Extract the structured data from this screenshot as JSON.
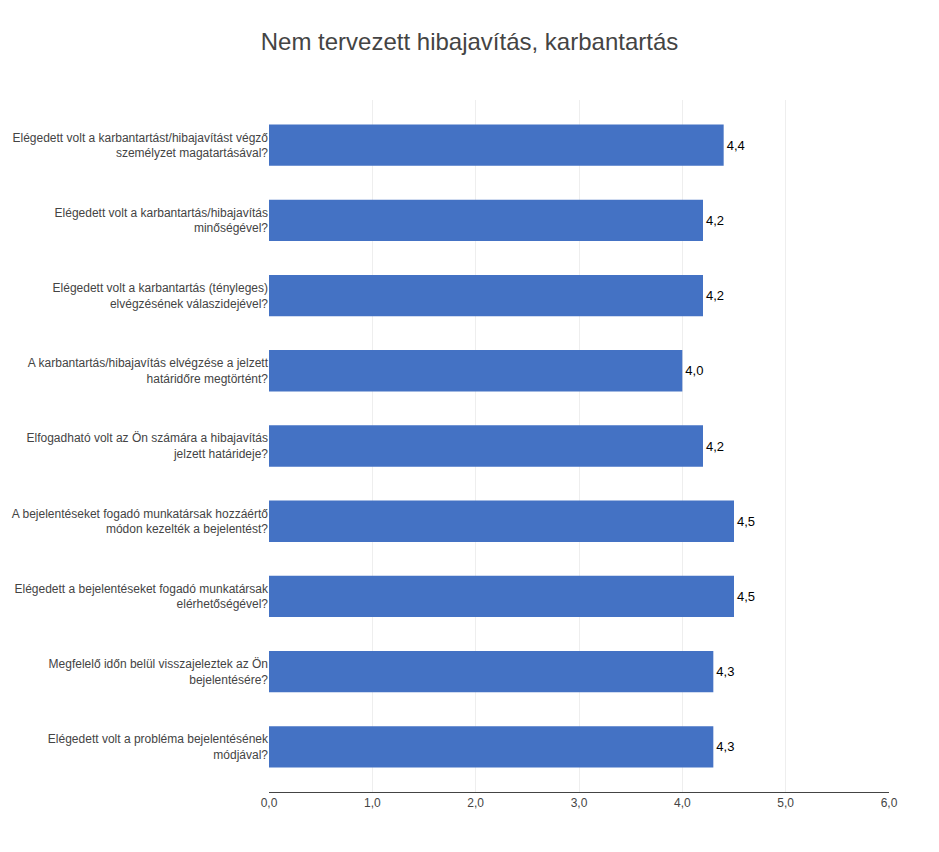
{
  "chart_data": {
    "type": "bar",
    "orientation": "horizontal",
    "title": "Nem tervezett hibajavítás, karbantartás",
    "categories": [
      "Elégedett volt a probléma bejelentésének\nmódjával?",
      "Megfelelő időn belül visszajeleztek az Ön\nbejelentésére?",
      "Elégedett a bejelentéseket fogadó munkatársak\nelérhetőségével?",
      "A bejelentéseket fogadó munkatársak hozzáértő\nmódon kezelték a bejelentést?",
      "Elfogadható volt az Ön számára a hibajavítás\njelzett határideje?",
      "A karbantartás/hibajavítás elvégzése a jelzett\nhatáridőre megtörtént?",
      "Elégedett volt a karbantartás (tényleges)\nelvégzésének válaszidejével?",
      "Elégedett volt a karbantartás/hibajavítás\nminőségével?",
      "Elégedett volt a karbantartást/hibajavítást végző\nszemélyzet magatartásával?"
    ],
    "values": [
      4.3,
      4.3,
      4.5,
      4.5,
      4.2,
      4.0,
      4.2,
      4.2,
      4.4
    ],
    "value_labels": [
      "4,3",
      "4,3",
      "4,5",
      "4,5",
      "4,2",
      "4,0",
      "4,2",
      "4,2",
      "4,4"
    ],
    "data_labels": true,
    "color": "#4472C4",
    "xlim": [
      0,
      6.0
    ],
    "xticks": [
      {
        "value": 0.0,
        "label": "0,0"
      },
      {
        "value": 1.0,
        "label": "1,0"
      },
      {
        "value": 2.0,
        "label": "2,0"
      },
      {
        "value": 3.0,
        "label": "3,0"
      },
      {
        "value": 4.0,
        "label": "4,0"
      },
      {
        "value": 5.0,
        "label": "5,0"
      },
      {
        "value": 6.0,
        "label": "6,0"
      }
    ],
    "grid": true
  }
}
